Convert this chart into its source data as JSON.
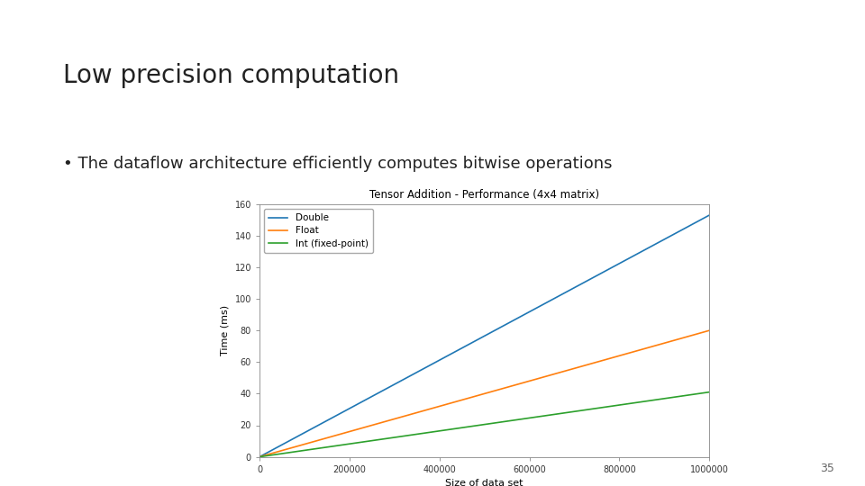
{
  "slide_title": "Low precision computation",
  "bullet_text": "• The dataflow architecture efficiently computes bitwise operations",
  "chart_title": "Tensor Addition - Performance (4x4 matrix)",
  "xlabel": "Size of data set",
  "ylabel": "Time (ms)",
  "x_max": 1000000,
  "y_max": 160,
  "series": [
    {
      "label": "Double",
      "color": "#1f77b4",
      "slope": 0.000153
    },
    {
      "label": "Float",
      "color": "#ff7f0e",
      "slope": 8e-05
    },
    {
      "label": "Int (fixed-point)",
      "color": "#2ca02c",
      "slope": 4.1e-05
    }
  ],
  "page_number": "35",
  "background_color": "#ffffff",
  "slide_title_fontsize": 20,
  "bullet_fontsize": 13,
  "page_number_fontsize": 9
}
